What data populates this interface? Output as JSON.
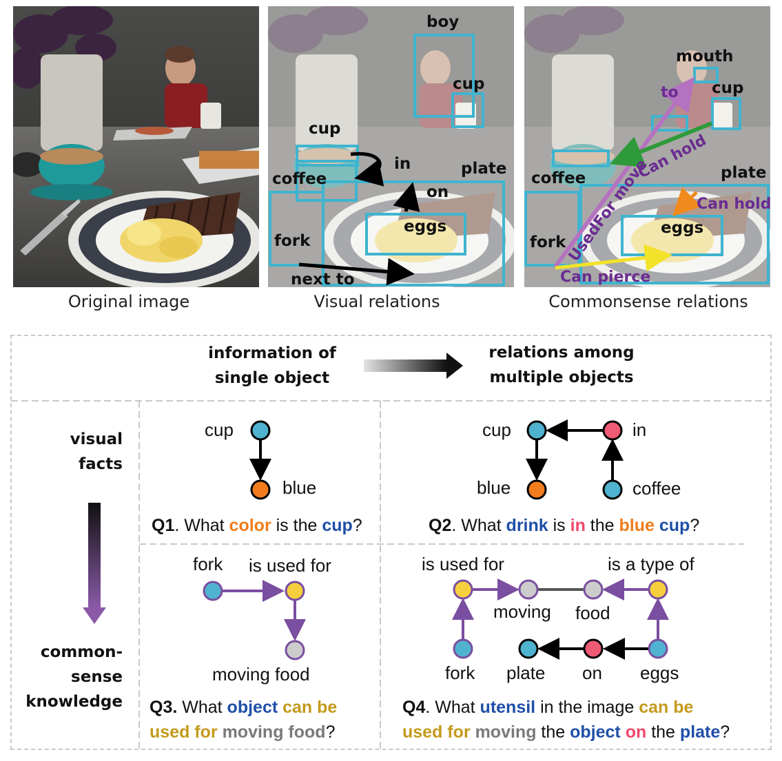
{
  "captions": {
    "original": "Original image",
    "visual": "Visual relations",
    "commonsense": "Commonsense relations"
  },
  "visual_panel": {
    "labels": {
      "boy": "boy",
      "cup_right": "cup",
      "cup_left": "cup",
      "in": "in",
      "plate": "plate",
      "coffee": "coffee",
      "on": "on",
      "eggs": "eggs",
      "fork": "fork",
      "next_to": "next to"
    }
  },
  "commonsense_panel": {
    "labels": {
      "mouth": "mouth",
      "to": "to",
      "cup": "cup",
      "can_hold_1": "Can hold",
      "coffee": "coffee",
      "plate": "plate",
      "can_hold_2": "Can hold",
      "used_for_move": "UsedFor move",
      "eggs": "eggs",
      "fork": "fork",
      "can_pierce": "Can pierce"
    }
  },
  "table": {
    "col_header_left": [
      "information of",
      "single object"
    ],
    "col_header_right": [
      "relations among",
      "multiple objects"
    ],
    "row_visual": [
      "visual",
      "facts"
    ],
    "row_common": [
      "common-",
      "sense",
      "knowledge"
    ]
  },
  "graphs": {
    "g1": {
      "top": "cup",
      "bottom": "blue"
    },
    "g2": {
      "cup": "cup",
      "in": "in",
      "blue": "blue",
      "coffee": "coffee"
    },
    "g3": {
      "fork": "fork",
      "used_for": "is used for",
      "target": "moving food"
    },
    "g4": {
      "used_for": "is used for",
      "type_of": "is a type of",
      "moving": "moving",
      "food": "food",
      "fork": "fork",
      "plate": "plate",
      "on": "on",
      "eggs": "eggs"
    }
  },
  "questions": {
    "q1": {
      "id": "Q1",
      "p1": ". What ",
      "color": "color",
      "p2": " is the ",
      "cup": "cup",
      "p3": "?"
    },
    "q2": {
      "id": "Q2",
      "p1": ". What ",
      "drink": "drink",
      "p2": " is ",
      "in": "in",
      "p3": " the ",
      "blue": "blue",
      "p4": " ",
      "cup": "cup",
      "p5": "?"
    },
    "q3": {
      "id": "Q3.",
      "p1": " What ",
      "object": "object",
      "p2": " ",
      "can_be": "can be",
      "line2_used": "used for",
      "p3": " ",
      "moving_food": "moving food",
      "p4": "?"
    },
    "q4": {
      "id": "Q4",
      "p1": ". What ",
      "utensil": "utensil",
      "p2": " in the image ",
      "can_be": "can be",
      "line2_used": "used for",
      "p3": " ",
      "moving": "moving",
      "p4": " the ",
      "object": "object",
      "p5": " ",
      "on": "on",
      "p6": " the ",
      "plate": "plate",
      "p7": "?"
    }
  },
  "colors": {
    "box": "#3fb4cf",
    "purple": "#7a4ea0",
    "node_blue": "#4fb3cf",
    "node_orange": "#f37d1d",
    "node_pink": "#ef5a74",
    "node_yellow": "#f6cf3e",
    "node_gray": "#cccccc"
  }
}
